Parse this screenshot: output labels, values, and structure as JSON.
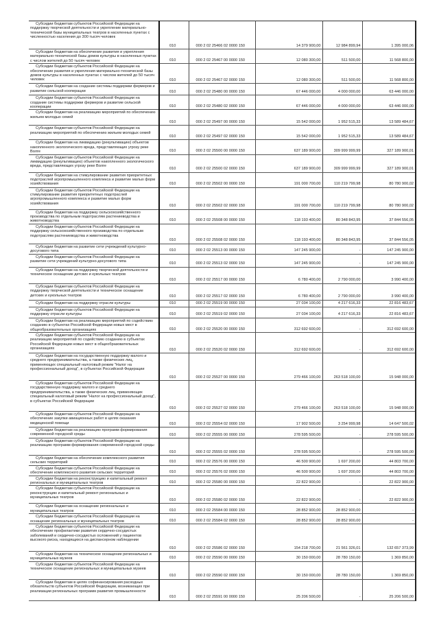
{
  "table": {
    "rows": [
      {
        "name": "Субсидии бюджетам субъектов Российской Федерации на поддержку творческой деятельности и укрепление материально-технической базы муниципальных театров в населенных пунктах с численностью населения до 300 тысяч человек",
        "code": "010",
        "kbk": "000 2 02 25466 02 0000 150",
        "approved": "14 379 900,00",
        "executed": "12 984 899,94",
        "unexecuted": "1 395 000,06"
      },
      {
        "name": "Субсидии бюджетам на обеспечение развития и укрепления материально-технической базы домов культуры в населенных пунктах с числом жителей до 50 тысяч человек",
        "code": "010",
        "kbk": "000 2 02 25467 00 0000 150",
        "approved": "12 080 300,00",
        "executed": "511 500,00",
        "unexecuted": "11 568 800,00"
      },
      {
        "name": "Субсидии бюджетам субъектов Российской Федерации на обеспечение развития и укрепления материально-технической базы домов культуры в населенных пунктах с числом жителей до 50 тысяч человек",
        "code": "010",
        "kbk": "000 2 02 25467 02 0000 150",
        "approved": "12 080 300,00",
        "executed": "511 500,00",
        "unexecuted": "11 568 800,00"
      },
      {
        "name": "Субсидии бюджетам на создание системы поддержки фермеров и развитие сельской кооперации",
        "code": "010",
        "kbk": "000 2 02 25480 00 0000 150",
        "approved": "67 446 000,00",
        "executed": "4 000 000,00",
        "unexecuted": "63 446 000,00"
      },
      {
        "name": "Субсидии бюджетам субъектов Российской Федерации на создание системы поддержки фермеров и развитие сельской кооперации",
        "code": "010",
        "kbk": "000 2 02 25480 02 0000 150",
        "approved": "67 446 000,00",
        "executed": "4 000 000,00",
        "unexecuted": "63 446 000,00"
      },
      {
        "name": "Субсидии бюджетам на реализацию мероприятий по обеспечению жильем молодых семей",
        "code": "010",
        "kbk": "000 2 02 25497 00 0000 150",
        "approved": "15 542 000,00",
        "executed": "1 952 515,33",
        "unexecuted": "13 589 484,67"
      },
      {
        "name": "Субсидии бюджетам субъектов Российской Федерации на реализацию мероприятий по обеспечению жильем молодых семей",
        "code": "010",
        "kbk": "000 2 02 25497 02 0000 150",
        "approved": "15 542 000,00",
        "executed": "1 952 515,33",
        "unexecuted": "13 589 484,67"
      },
      {
        "name": "Субсидии бюджетам на ликвидацию (рекультивацию) объектов накопленного экологического вреда, представляющих угрозу реке Волге",
        "code": "010",
        "kbk": "000 2 02 25500 00 0000 150",
        "approved": "637 189 900,00",
        "executed": "309 999 999,99",
        "unexecuted": "327 189 900,01"
      },
      {
        "name": "Субсидии бюджетам субъектов Российской Федерации на ликвидацию (рекультивацию) объектов накопленного экологического вреда, представляющих угрозу реке Волге",
        "code": "010",
        "kbk": "000 2 02 25500 02 0000 150",
        "approved": "637 189 900,00",
        "executed": "309 999 999,99",
        "unexecuted": "327 189 900,01"
      },
      {
        "name": "Субсидии бюджетам на стимулирование развития приоритетных подотраслей агропромышленного комплекса и развитие малых форм хозяйствования",
        "code": "010",
        "kbk": "000 2 02 25502 00 0000 150",
        "approved": "191 000 700,00",
        "executed": "110 219 799,98",
        "unexecuted": "80 780 900,02"
      },
      {
        "name": "Субсидии бюджетам субъектов Российской Федерации на стимулирование развития приоритетных подотраслей агропромышленного комплекса и развитие малых форм хозяйствования",
        "code": "010",
        "kbk": "000 2 02 25502 02 0000 150",
        "approved": "191 000 700,00",
        "executed": "110 219 799,98",
        "unexecuted": "80 780 900,02"
      },
      {
        "name": "Субсидии бюджетам на поддержку сельскохозяйственного производства по отдельным подотраслям растениеводства и животноводства",
        "code": "010",
        "kbk": "000 2 02 25508 00 0000 150",
        "approved": "118 193 400,00",
        "executed": "80 348 843,95",
        "unexecuted": "37 844 556,05"
      },
      {
        "name": "Субсидии бюджетам субъектов Российской Федерации на поддержку сельскохозяйственного производства по отдельным подотраслям растениеводства и животноводства",
        "code": "010",
        "kbk": "000 2 02 25508 02 0000 150",
        "approved": "118 193 400,00",
        "executed": "80 348 843,95",
        "unexecuted": "37 844 556,05"
      },
      {
        "name": "Субсидии бюджетам на развитие сети учреждений культурно-досугового типа",
        "code": "010",
        "kbk": "000 2 02 25513 00 0000 150",
        "approved": "147 245 900,00",
        "executed": "-",
        "unexecuted": "147 245 900,00"
      },
      {
        "name": "Субсидии бюджетам субъектов Российской Федерации на развитие сети учреждений культурно-досугового типа",
        "code": "010",
        "kbk": "000 2 02 25513 02 0000 150",
        "approved": "147 245 900,00",
        "executed": "-",
        "unexecuted": "147 245 900,00"
      },
      {
        "name": "Субсидии бюджетам на поддержку творческой деятельности и техническое оснащение детских и кукольных театров",
        "code": "010",
        "kbk": "000 2 02 25517 00 0000 150",
        "approved": "6 780 400,00",
        "executed": "2 790 000,00",
        "unexecuted": "3 990 400,00"
      },
      {
        "name": "Субсидии бюджетам субъектов Российской Федерации на поддержку творческой деятельности и техническое оснащение детских и кукольных театров",
        "code": "010",
        "kbk": "000 2 02 25517 02 0000 150",
        "approved": "6 780 400,00",
        "executed": "2 790 000,00",
        "unexecuted": "3 990 400,00"
      },
      {
        "name": "Субсидии бюджетам на поддержку отрасли культуры",
        "code": "010",
        "kbk": "000 2 02 25519 00 0000 150",
        "approved": "27 034 100,00",
        "executed": "4 217 616,33",
        "unexecuted": "22 816 483,67"
      },
      {
        "name": "Субсидии бюджетам субъектов Российской Федерации на поддержку отрасли культуры",
        "code": "010",
        "kbk": "000 2 02 25519 02 0000 150",
        "approved": "27 034 100,00",
        "executed": "4 217 616,33",
        "unexecuted": "22 816 483,67"
      },
      {
        "name": "Субсидии бюджетам на реализацию мероприятий по содействию созданию в субъектах Российской Федерации новых мест в общеобразовательных организациях",
        "code": "010",
        "kbk": "000 2 02 25520 00 0000 150",
        "approved": "312 692 600,00",
        "executed": "-",
        "unexecuted": "312 692 600,00"
      },
      {
        "name": "Субсидии бюджетам субъектов Российской Федерации на реализацию мероприятий по содействию созданию в субъектах Российской Федерации новых мест в общеобразовательных организациях",
        "code": "010",
        "kbk": "000 2 02 25520 02 0000 150",
        "approved": "312 692 600,00",
        "executed": "-",
        "unexecuted": "312 692 600,00"
      },
      {
        "name": "Субсидии бюджетам на государственную поддержку малого и среднего предпринимательства, а также физических лиц, применяющих специальный налоговый режим \"Налог на профессиональный доход\", в субъектах Российской Федерации",
        "code": "010",
        "kbk": "000 2 02 25527 00 0000 150",
        "approved": "279 466 100,00",
        "executed": "263 518 100,00",
        "unexecuted": "15 948 000,00"
      },
      {
        "name": "Субсидии бюджетам субъектов Российской Федерации на государственную поддержку малого и среднего предпринимательства, а также физических лиц, применяющих специальный налоговый режим \"Налог на профессиональный доход\", в субъектах Российской Федерации",
        "code": "010",
        "kbk": "000 2 02 25527 02 0000 150",
        "approved": "279 466 100,00",
        "executed": "263 518 100,00",
        "unexecuted": "15 948 000,00"
      },
      {
        "name": "Субсидии бюджетам субъектов Российской Федерации на обеспечение закупки авиационных работ в целях оказания медицинской помощи",
        "code": "010",
        "kbk": "000 2 02 25554 02 0000 150",
        "approved": "17 902 500,00",
        "executed": "3 254 999,98",
        "unexecuted": "14 647 500,02"
      },
      {
        "name": "Субсидии бюджетам на реализацию программ формирования современной городской среды",
        "code": "010",
        "kbk": "000 2 02 25555 00 0000 150",
        "approved": "278 595 500,00",
        "executed": "-",
        "unexecuted": "278 595 500,00"
      },
      {
        "name": "Субсидии бюджетам субъектов Российской Федерации на реализацию программ формирования современной городской среды",
        "code": "010",
        "kbk": "000 2 02 25555 02 0000 150",
        "approved": "278 595 500,00",
        "executed": "-",
        "unexecuted": "278 595 500,00"
      },
      {
        "name": "Субсидии бюджетам на обеспечение комплексного развития сельских территорий",
        "code": "010",
        "kbk": "000 2 02 25576 00 0000 150",
        "approved": "46 500 900,00",
        "executed": "1 697 200,00",
        "unexecuted": "44 803 700,00"
      },
      {
        "name": "Субсидии бюджетам субъектов Российской Федерации на обеспечение комплексного развития сельских территорий",
        "code": "010",
        "kbk": "000 2 02 25576 02 0000 150",
        "approved": "46 500 900,00",
        "executed": "1 697 200,00",
        "unexecuted": "44 803 700,00"
      },
      {
        "name": "Субсидии бюджетам на реконструкцию и капитальный ремонт региональных и муниципальных театров",
        "code": "010",
        "kbk": "000 2 02 25580 00 0000 150",
        "approved": "22 822 900,00",
        "executed": "-",
        "unexecuted": "22 822 900,00"
      },
      {
        "name": "Субсидии бюджетам субъектов Российской Федерации на реконструкцию и капитальный ремонт региональных и муниципальных театров",
        "code": "010",
        "kbk": "000 2 02 25580 02 0000 150",
        "approved": "22 822 900,00",
        "executed": "-",
        "unexecuted": "22 822 900,00"
      },
      {
        "name": "Субсидии бюджетам на оснащение региональных и муниципальных театров",
        "code": "010",
        "kbk": "000 2 02 25584 00 0000 150",
        "approved": "28 852 900,00",
        "executed": "28 852 900,00",
        "unexecuted": "-"
      },
      {
        "name": "Субсидии бюджетам субъектов Российской Федерации на оснащение региональных и муниципальных театров",
        "code": "010",
        "kbk": "000 2 02 25584 02 0000 150",
        "approved": "28 852 900,00",
        "executed": "28 852 900,00",
        "unexecuted": "-"
      },
      {
        "name": "Субсидии бюджетам субъектов Российской Федерации на обеспечение профилактики развития сердечно-сосудистых заболеваний и сердечно-сосудистых осложнений у пациентов высокого риска, находящихся на диспансерном наблюдении",
        "code": "010",
        "kbk": "000 2 02 25586 02 0000 150",
        "approved": "154 218 700,00",
        "executed": "21 561 326,01",
        "unexecuted": "132 657 373,99"
      },
      {
        "name": "Субсидии бюджетам на техническое оснащение региональных и муниципальных музеев",
        "code": "010",
        "kbk": "000 2 02 25590 00 0000 150",
        "approved": "30 150 000,00",
        "executed": "28 780 150,00",
        "unexecuted": "1 369 850,00"
      },
      {
        "name": "Субсидии бюджетам субъектов Российской Федерации на техническое оснащение региональных и муниципальных музеев",
        "code": "010",
        "kbk": "000 2 02 25590 02 0000 150",
        "approved": "30 150 000,00",
        "executed": "28 780 150,00",
        "unexecuted": "1 369 850,00"
      },
      {
        "name": "Субсидии бюджетам в целях софинансирования расходных обязательств субъектов Российской Федерации, возникающих при реализации региональных программ развития промышленности",
        "code": "010",
        "kbk": "000 2 02 25591 00 0000 150",
        "approved": "25 206 500,00",
        "executed": "-",
        "unexecuted": "25 206 500,00"
      }
    ]
  }
}
